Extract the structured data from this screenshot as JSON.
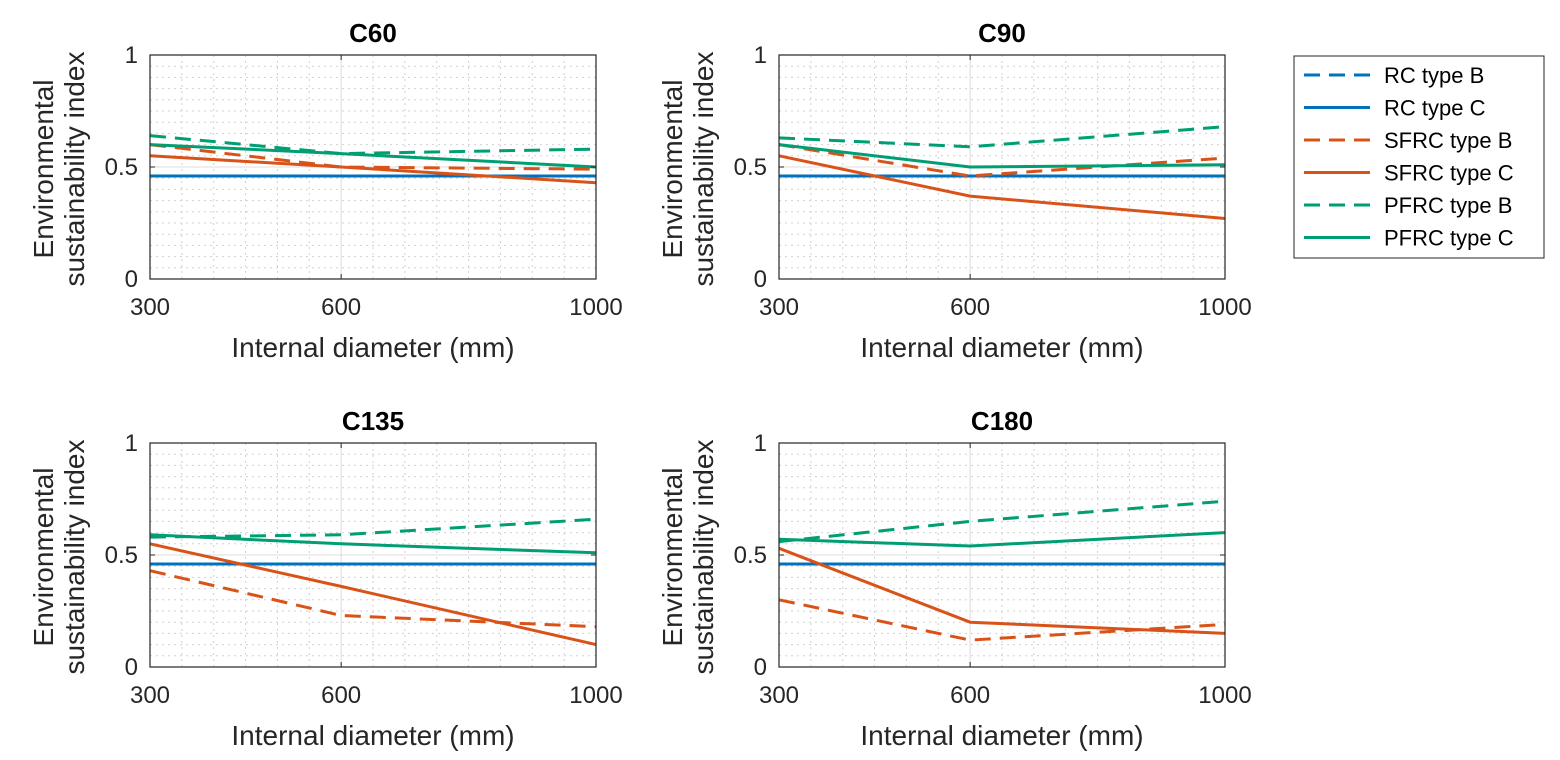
{
  "figure": {
    "line_styles": {
      "RC type B": {
        "color": "#0072BD",
        "dash": "dashed"
      },
      "RC type C": {
        "color": "#0072BD",
        "dash": "solid"
      },
      "SFRC type B": {
        "color": "#D95319",
        "dash": "dashed"
      },
      "SFRC type C": {
        "color": "#D95319",
        "dash": "solid"
      },
      "PFRC type B": {
        "color": "#009E73",
        "dash": "dashed"
      },
      "PFRC type C": {
        "color": "#009E73",
        "dash": "solid"
      }
    },
    "legend": {
      "position": "right",
      "entries": [
        "RC type B",
        "RC type C",
        "SFRC type B",
        "SFRC type C",
        "PFRC type B",
        "PFRC type C"
      ]
    }
  },
  "chart_data": [
    {
      "type": "line",
      "title": "C60",
      "xlabel": "Internal diameter (mm)",
      "ylabel": [
        "Environmental",
        "sustainability index"
      ],
      "x": [
        300,
        600,
        1000
      ],
      "xlim": [
        300,
        1000
      ],
      "ylim": [
        0,
        1
      ],
      "xticks": [
        300,
        600,
        1000
      ],
      "yticks": [
        0,
        0.5,
        1
      ],
      "ytick_labels": [
        "0",
        "0.5",
        "1"
      ],
      "grid": true,
      "series": [
        {
          "name": "RC type B",
          "values": [
            0.46,
            0.46,
            0.46
          ]
        },
        {
          "name": "RC type C",
          "values": [
            0.46,
            0.46,
            0.46
          ]
        },
        {
          "name": "SFRC type B",
          "values": [
            0.6,
            0.5,
            0.49
          ]
        },
        {
          "name": "SFRC type C",
          "values": [
            0.55,
            0.5,
            0.43
          ]
        },
        {
          "name": "PFRC type B",
          "values": [
            0.64,
            0.56,
            0.58
          ]
        },
        {
          "name": "PFRC type C",
          "values": [
            0.6,
            0.56,
            0.5
          ]
        }
      ]
    },
    {
      "type": "line",
      "title": "C90",
      "xlabel": "Internal diameter (mm)",
      "ylabel": [
        "Environmental",
        "sustainability index"
      ],
      "x": [
        300,
        600,
        1000
      ],
      "xlim": [
        300,
        1000
      ],
      "ylim": [
        0,
        1
      ],
      "xticks": [
        300,
        600,
        1000
      ],
      "yticks": [
        0,
        0.5,
        1
      ],
      "ytick_labels": [
        "0",
        "0.5",
        "1"
      ],
      "grid": true,
      "series": [
        {
          "name": "RC type B",
          "values": [
            0.46,
            0.46,
            0.46
          ]
        },
        {
          "name": "RC type C",
          "values": [
            0.46,
            0.46,
            0.46
          ]
        },
        {
          "name": "SFRC type B",
          "values": [
            0.6,
            0.46,
            0.54
          ]
        },
        {
          "name": "SFRC type C",
          "values": [
            0.55,
            0.37,
            0.27
          ]
        },
        {
          "name": "PFRC type B",
          "values": [
            0.63,
            0.59,
            0.68
          ]
        },
        {
          "name": "PFRC type C",
          "values": [
            0.6,
            0.5,
            0.51
          ]
        }
      ]
    },
    {
      "type": "line",
      "title": "C135",
      "xlabel": "Internal diameter (mm)",
      "ylabel": [
        "Environmental",
        "sustainability index"
      ],
      "x": [
        300,
        600,
        1000
      ],
      "xlim": [
        300,
        1000
      ],
      "ylim": [
        0,
        1
      ],
      "xticks": [
        300,
        600,
        1000
      ],
      "yticks": [
        0,
        0.5,
        1
      ],
      "ytick_labels": [
        "0",
        "0.5",
        "1"
      ],
      "grid": true,
      "series": [
        {
          "name": "RC type B",
          "values": [
            0.46,
            0.46,
            0.46
          ]
        },
        {
          "name": "RC type C",
          "values": [
            0.46,
            0.46,
            0.46
          ]
        },
        {
          "name": "SFRC type B",
          "values": [
            0.43,
            0.23,
            0.18
          ]
        },
        {
          "name": "SFRC type C",
          "values": [
            0.55,
            0.36,
            0.1
          ]
        },
        {
          "name": "PFRC type B",
          "values": [
            0.58,
            0.59,
            0.66
          ]
        },
        {
          "name": "PFRC type C",
          "values": [
            0.59,
            0.55,
            0.51
          ]
        }
      ]
    },
    {
      "type": "line",
      "title": "C180",
      "xlabel": "Internal diameter (mm)",
      "ylabel": [
        "Environmental",
        "sustainability index"
      ],
      "x": [
        300,
        600,
        1000
      ],
      "xlim": [
        300,
        1000
      ],
      "ylim": [
        0,
        1
      ],
      "xticks": [
        300,
        600,
        1000
      ],
      "yticks": [
        0,
        0.5,
        1
      ],
      "ytick_labels": [
        "0",
        "0.5",
        "1"
      ],
      "grid": true,
      "series": [
        {
          "name": "RC type B",
          "values": [
            0.46,
            0.46,
            0.46
          ]
        },
        {
          "name": "RC type C",
          "values": [
            0.46,
            0.46,
            0.46
          ]
        },
        {
          "name": "SFRC type B",
          "values": [
            0.3,
            0.12,
            0.19
          ]
        },
        {
          "name": "SFRC type C",
          "values": [
            0.53,
            0.2,
            0.15
          ]
        },
        {
          "name": "PFRC type B",
          "values": [
            0.56,
            0.65,
            0.74
          ]
        },
        {
          "name": "PFRC type C",
          "values": [
            0.57,
            0.54,
            0.6
          ]
        }
      ]
    }
  ]
}
